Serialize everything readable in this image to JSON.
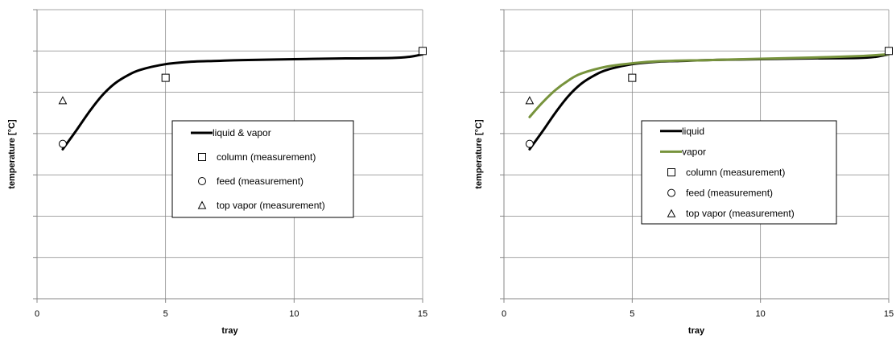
{
  "chart_data": [
    {
      "type": "line",
      "xlabel": "tray",
      "ylabel": "temperature [°C]",
      "xlim": [
        0,
        15
      ],
      "ylim": [
        0,
        7
      ],
      "xticks": [
        0,
        5,
        10,
        15
      ],
      "y_tick_labels_shown": false,
      "grid": true,
      "legend_position": "center-right",
      "series": [
        {
          "name": "liquid & vapor",
          "kind": "line",
          "color": "#000000",
          "points": [
            [
              1,
              3.62
            ],
            [
              1.5,
              4.05
            ],
            [
              2,
              4.5
            ],
            [
              2.5,
              4.9
            ],
            [
              3,
              5.2
            ],
            [
              3.5,
              5.4
            ],
            [
              4,
              5.54
            ],
            [
              5,
              5.68
            ],
            [
              6,
              5.74
            ],
            [
              7,
              5.76
            ],
            [
              8,
              5.78
            ],
            [
              10,
              5.8
            ],
            [
              12,
              5.82
            ],
            [
              13.8,
              5.83
            ],
            [
              14.5,
              5.86
            ],
            [
              15,
              5.92
            ]
          ]
        },
        {
          "name": "column (measurement)",
          "kind": "marker",
          "marker": "square",
          "points": [
            [
              5,
              5.35
            ],
            [
              15,
              6.0
            ]
          ]
        },
        {
          "name": "feed (measurement)",
          "kind": "marker",
          "marker": "circle",
          "points": [
            [
              1,
              3.75
            ]
          ]
        },
        {
          "name": "top vapor (measurement)",
          "kind": "marker",
          "marker": "triangle",
          "points": [
            [
              1,
              4.8
            ]
          ]
        }
      ]
    },
    {
      "type": "line",
      "xlabel": "tray",
      "ylabel": "temperature [°C]",
      "xlim": [
        0,
        15
      ],
      "ylim": [
        0,
        7
      ],
      "xticks": [
        0,
        5,
        10,
        15
      ],
      "y_tick_labels_shown": false,
      "grid": true,
      "legend_position": "center-right",
      "series": [
        {
          "name": "liquid",
          "kind": "line",
          "color": "#000000",
          "points": [
            [
              1,
              3.62
            ],
            [
              1.5,
              4.05
            ],
            [
              2,
              4.5
            ],
            [
              2.5,
              4.9
            ],
            [
              3,
              5.2
            ],
            [
              3.5,
              5.4
            ],
            [
              4,
              5.54
            ],
            [
              5,
              5.68
            ],
            [
              6,
              5.74
            ],
            [
              7,
              5.76
            ],
            [
              8,
              5.78
            ],
            [
              10,
              5.8
            ],
            [
              12,
              5.82
            ],
            [
              13.8,
              5.83
            ],
            [
              14.5,
              5.86
            ],
            [
              15,
              5.92
            ]
          ]
        },
        {
          "name": "vapor",
          "kind": "line",
          "color": "#77933C",
          "points": [
            [
              1,
              4.4
            ],
            [
              1.5,
              4.75
            ],
            [
              2,
              5.05
            ],
            [
              2.5,
              5.28
            ],
            [
              3,
              5.45
            ],
            [
              4,
              5.62
            ],
            [
              5,
              5.7
            ],
            [
              6,
              5.75
            ],
            [
              8,
              5.78
            ],
            [
              10,
              5.81
            ],
            [
              12,
              5.84
            ],
            [
              14,
              5.88
            ],
            [
              15,
              5.92
            ]
          ]
        },
        {
          "name": "column (measurement)",
          "kind": "marker",
          "marker": "square",
          "points": [
            [
              5,
              5.35
            ],
            [
              15,
              6.0
            ]
          ]
        },
        {
          "name": "feed (measurement)",
          "kind": "marker",
          "marker": "circle",
          "points": [
            [
              1,
              3.75
            ]
          ]
        },
        {
          "name": "top vapor (measurement)",
          "kind": "marker",
          "marker": "triangle",
          "points": [
            [
              1,
              4.8
            ]
          ]
        }
      ]
    }
  ]
}
